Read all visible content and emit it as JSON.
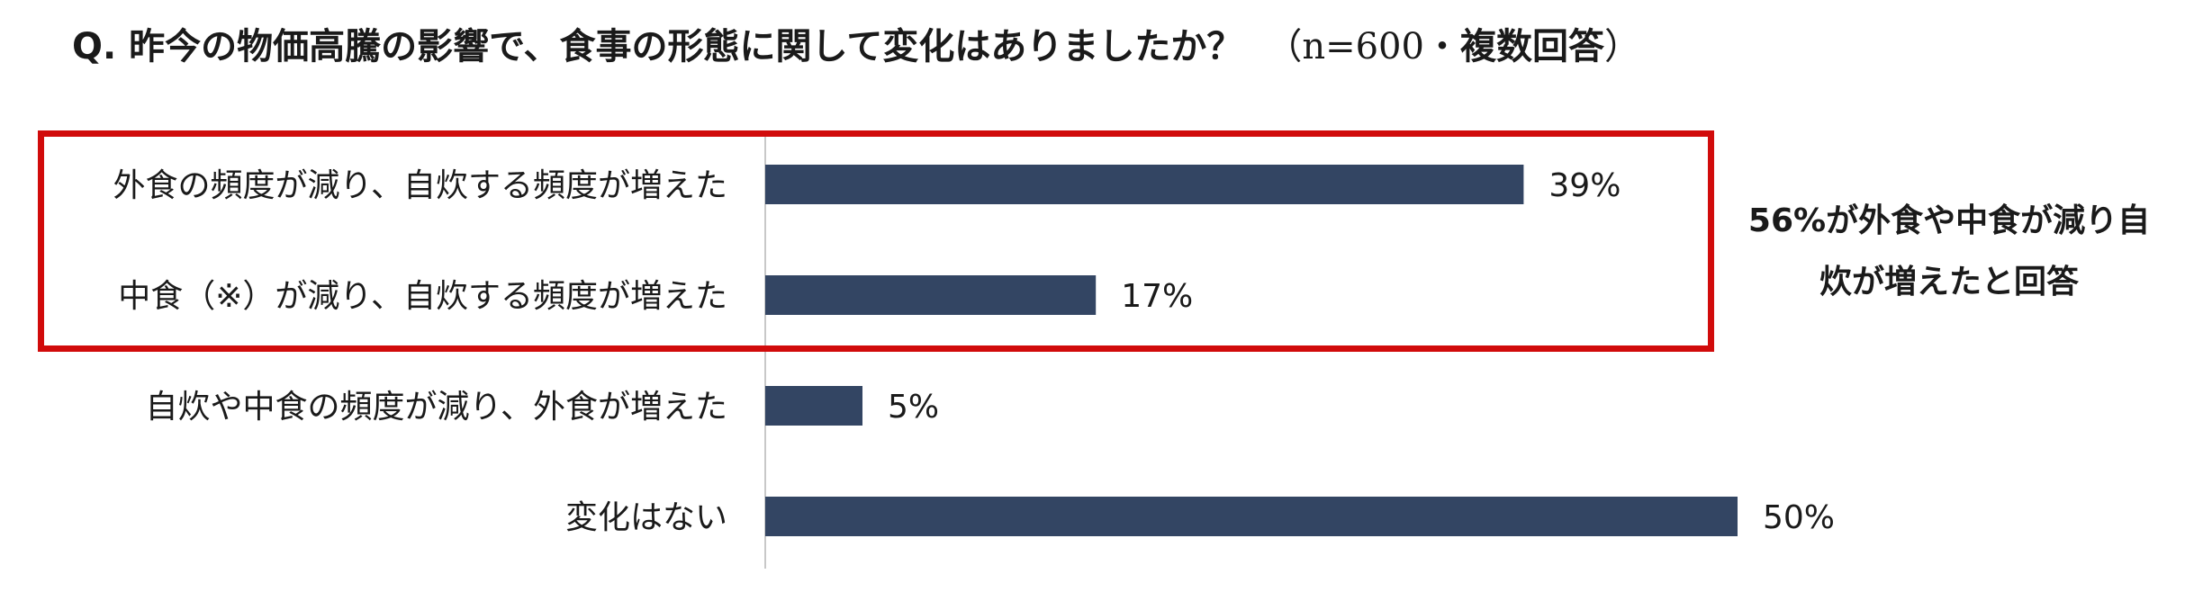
{
  "title": {
    "question": "Q. 昨今の物価高騰の影響で、食事の形態に関して変化はありましたか？",
    "note_open": "（n=600・",
    "note_bold": "複数回答",
    "note_close": "）"
  },
  "annotation": {
    "line1": "56%が外食や中食が減り自",
    "line2": "炊が増えたと回答"
  },
  "colors": {
    "bar": "#334563",
    "highlight": "#d10b0b",
    "axis": "#c8c8c8"
  },
  "chart_data": {
    "type": "bar",
    "orientation": "horizontal",
    "categories": [
      "外食の頻度が減り、自炊する頻度が増えた",
      "中食（※）が減り、自炊する頻度が増えた",
      "自炊や中食の頻度が減り、外食が増えた",
      "変化はない"
    ],
    "values": [
      39,
      17,
      5,
      50
    ],
    "value_labels": [
      "39%",
      "17%",
      "5%",
      "50%"
    ],
    "unit": "%",
    "xlim": [
      0,
      50
    ],
    "grid": false,
    "legend": "none",
    "highlighted_categories": [
      0,
      1
    ]
  }
}
